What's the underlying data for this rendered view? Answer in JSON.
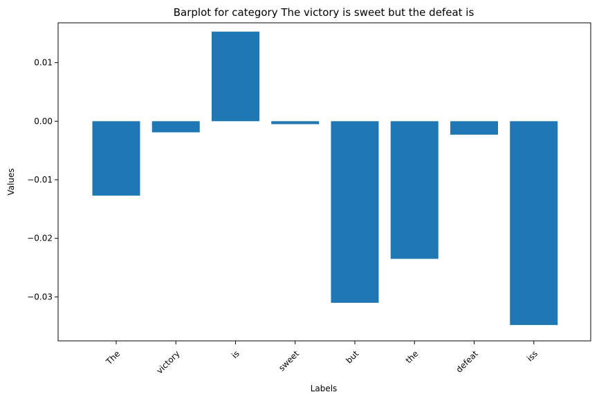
{
  "chart_data": {
    "type": "bar",
    "title": "Barplot for category The victory is sweet but the defeat is",
    "xlabel": "Labels",
    "ylabel": "Values",
    "categories": [
      "The",
      "victory",
      "is",
      "sweet",
      "but",
      "the",
      "defeat",
      "iss"
    ],
    "values": [
      -0.0127,
      -0.0019,
      0.0153,
      -0.0005,
      -0.031,
      -0.0235,
      -0.0023,
      -0.0348
    ],
    "ylim": [
      -0.0375,
      0.0168
    ],
    "yticks": [
      0.01,
      0.0,
      -0.01,
      -0.02,
      -0.03
    ],
    "ytick_labels": [
      "0.01",
      "0.00",
      "−0.01",
      "−0.02",
      "−0.03"
    ],
    "bar_color": "#1f77b4",
    "grid": false,
    "legend": "none"
  }
}
